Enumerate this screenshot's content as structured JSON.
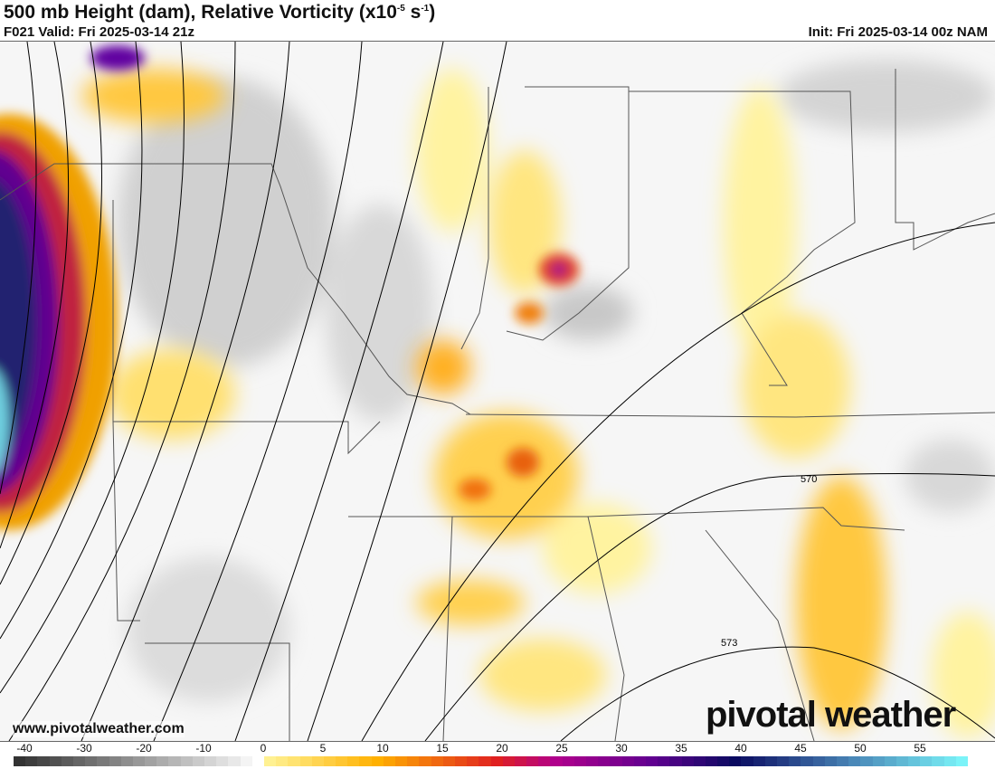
{
  "header": {
    "title": "500 mb Height (dam), Relative Vorticity (x10",
    "title_exp1": "-5",
    "title_unit": " s",
    "title_exp2": "-1",
    "title_close": ")",
    "valid": "F021 Valid: Fri 2025-03-14 21z",
    "init": "Init: Fri 2025-03-14 00z NAM"
  },
  "map": {
    "contour_labels": [
      "570",
      "573"
    ],
    "background": "#f4f4f4"
  },
  "watermark": {
    "url": "www.pivotalweather.com",
    "brand": "pivotal weather"
  },
  "colorbar": {
    "ticks": [
      "-40",
      "-30",
      "-20",
      "-10",
      "0",
      "5",
      "10",
      "15",
      "20",
      "25",
      "30",
      "35",
      "40",
      "45",
      "50",
      "55"
    ],
    "tick_values": [
      -40,
      -30,
      -20,
      -10,
      0,
      5,
      10,
      15,
      20,
      25,
      30,
      35,
      40,
      45,
      50,
      55
    ],
    "range": [
      -40,
      60
    ],
    "stops": [
      {
        "v": -40,
        "c": "#333333"
      },
      {
        "v": -4,
        "c": "#e8e8e8"
      },
      {
        "v": 0,
        "c": "#ffffff"
      },
      {
        "v": 0.5,
        "c": "#fff59a"
      },
      {
        "v": 10,
        "c": "#ffb000"
      },
      {
        "v": 20,
        "c": "#e02020"
      },
      {
        "v": 25,
        "c": "#b0008c"
      },
      {
        "v": 33,
        "c": "#600090"
      },
      {
        "v": 40,
        "c": "#0a0a60"
      },
      {
        "v": 50,
        "c": "#4a88b8"
      },
      {
        "v": 60,
        "c": "#80ffff"
      }
    ]
  }
}
